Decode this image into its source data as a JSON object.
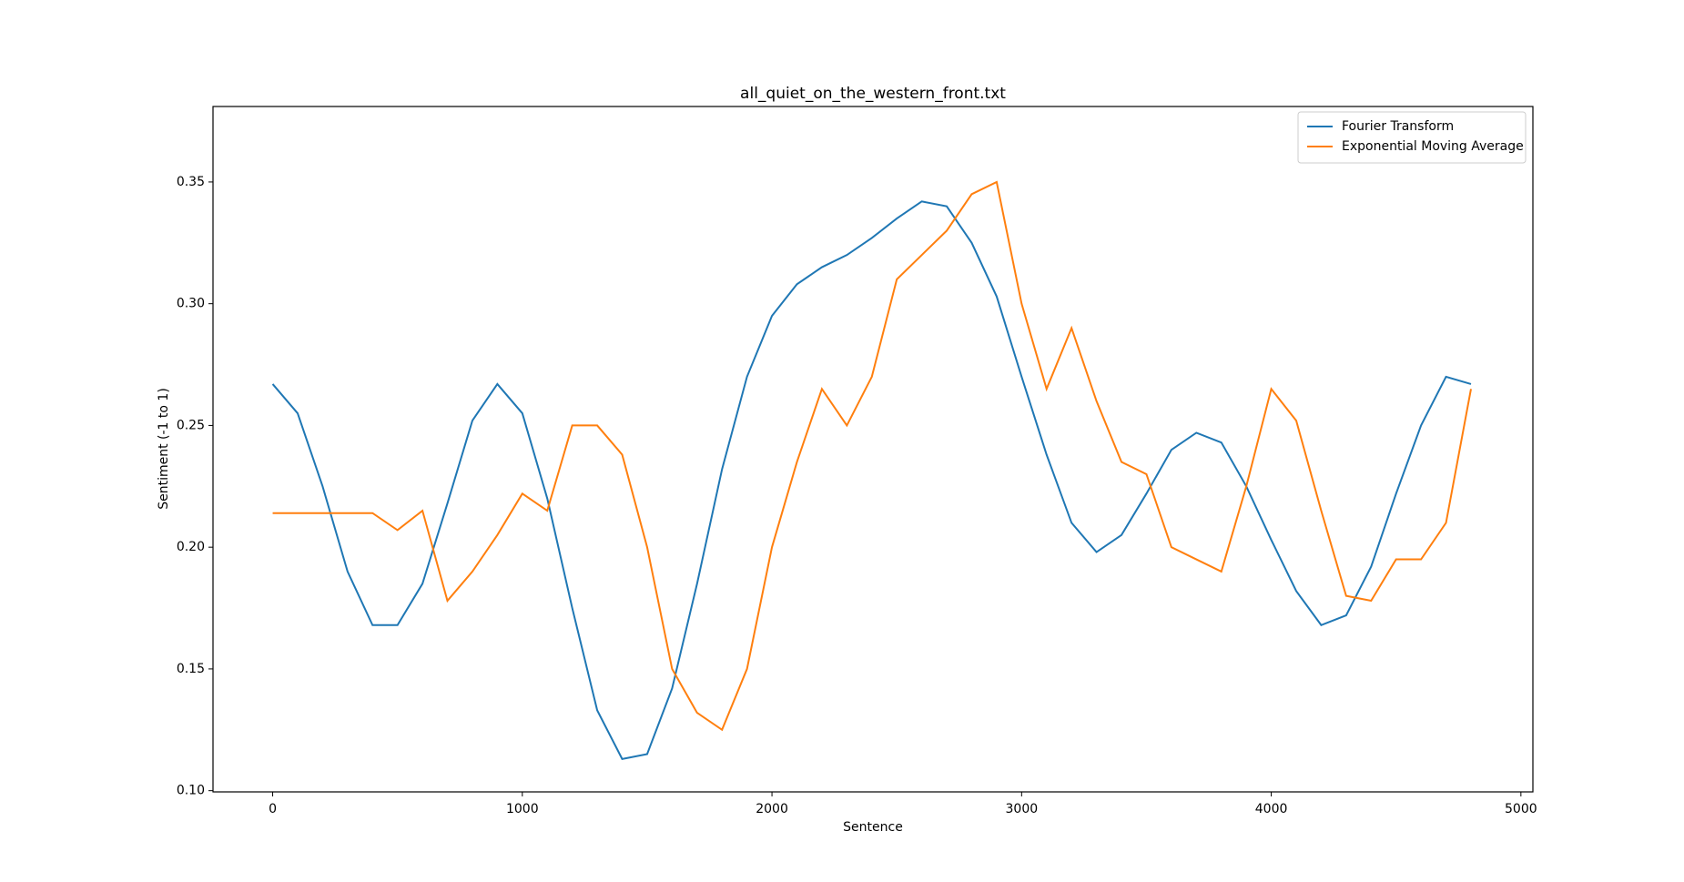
{
  "chart_data": {
    "type": "line",
    "title": "all_quiet_on_the_western_front.txt",
    "x_label": "Sentence",
    "y_label": "Sentiment (-1 to 1)",
    "x": [
      0,
      100,
      200,
      300,
      400,
      500,
      600,
      700,
      800,
      900,
      1000,
      1100,
      1200,
      1300,
      1400,
      1500,
      1600,
      1700,
      1800,
      1900,
      2000,
      2100,
      2200,
      2300,
      2400,
      2500,
      2600,
      2700,
      2800,
      2900,
      3000,
      3100,
      3200,
      3300,
      3400,
      3500,
      3600,
      3700,
      3800,
      3900,
      4000,
      4100,
      4200,
      4300,
      4400,
      4500,
      4600,
      4700,
      4800
    ],
    "series": [
      {
        "name": "Fourier Transform",
        "color": "#1f77b4",
        "values": [
          0.267,
          0.255,
          0.225,
          0.19,
          0.168,
          0.168,
          0.185,
          0.218,
          0.252,
          0.267,
          0.255,
          0.22,
          0.175,
          0.133,
          0.113,
          0.115,
          0.142,
          0.185,
          0.232,
          0.27,
          0.295,
          0.308,
          0.315,
          0.32,
          0.327,
          0.335,
          0.342,
          0.34,
          0.325,
          0.303,
          0.27,
          0.238,
          0.21,
          0.198,
          0.205,
          0.222,
          0.24,
          0.247,
          0.243,
          0.225,
          0.203,
          0.182,
          0.168,
          0.172,
          0.192,
          0.222,
          0.25,
          0.27,
          0.267
        ]
      },
      {
        "name": "Exponential Moving Average",
        "color": "#ff7f0e",
        "values": [
          0.214,
          0.214,
          0.214,
          0.214,
          0.214,
          0.207,
          0.215,
          0.178,
          0.19,
          0.205,
          0.222,
          0.215,
          0.25,
          0.25,
          0.238,
          0.2,
          0.15,
          0.132,
          0.125,
          0.15,
          0.2,
          0.235,
          0.265,
          0.25,
          0.27,
          0.31,
          0.32,
          0.33,
          0.345,
          0.35,
          0.3,
          0.265,
          0.29,
          0.26,
          0.235,
          0.23,
          0.2,
          0.195,
          0.19,
          0.225,
          0.265,
          0.252,
          0.215,
          0.18,
          0.178,
          0.195,
          0.195,
          0.21,
          0.265
        ]
      }
    ],
    "xlim": [
      -239,
      5048
    ],
    "ylim": [
      0.0995,
      0.381
    ],
    "xticks": [
      0,
      1000,
      2000,
      3000,
      4000,
      5000
    ],
    "yticks": [
      {
        "value": 0.1,
        "label": "0.10"
      },
      {
        "value": 0.15,
        "label": "0.15"
      },
      {
        "value": 0.2,
        "label": "0.20"
      },
      {
        "value": 0.25,
        "label": "0.25"
      },
      {
        "value": 0.3,
        "label": "0.30"
      },
      {
        "value": 0.35,
        "label": "0.35"
      }
    ],
    "legend": "upper right",
    "grid": false
  }
}
